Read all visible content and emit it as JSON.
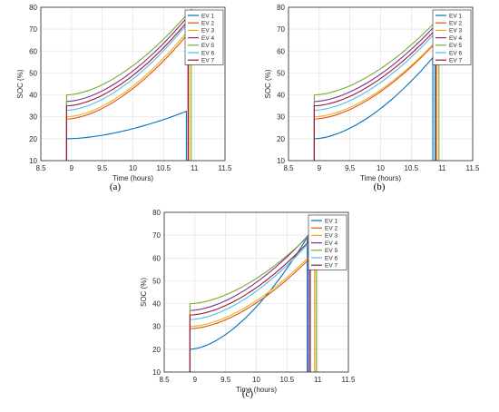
{
  "chart_data": [
    {
      "type": "line",
      "panel_label": "(a)",
      "xlabel": "Time (hours)",
      "ylabel": "SOC (%)",
      "xlim": [
        8.5,
        11.5
      ],
      "ylim": [
        10,
        80
      ],
      "xticks": [
        "8.5",
        "9",
        "9.5",
        "10",
        "10.5",
        "11",
        "11.5"
      ],
      "yticks": [
        "10",
        "20",
        "30",
        "40",
        "50",
        "60",
        "70",
        "80"
      ],
      "grid": true,
      "legend_position": "top-right",
      "series": [
        {
          "name": "EV 1",
          "color": "#0072BD",
          "start": 8.92,
          "end": 10.87,
          "soc_start": 20,
          "soc_end": 32.5
        },
        {
          "name": "EV 2",
          "color": "#D95319",
          "start": 8.92,
          "end": 10.9,
          "soc_start": 29,
          "soc_end": 68
        },
        {
          "name": "EV 3",
          "color": "#EDB120",
          "start": 8.92,
          "end": 10.92,
          "soc_start": 30,
          "soc_end": 70
        },
        {
          "name": "EV 4",
          "color": "#7E2F8E",
          "start": 8.92,
          "end": 10.9,
          "soc_start": 37,
          "soc_end": 76
        },
        {
          "name": "EV 5",
          "color": "#77AC30",
          "start": 8.92,
          "end": 10.95,
          "soc_start": 40,
          "soc_end": 79
        },
        {
          "name": "EV 6",
          "color": "#4DBEEE",
          "start": 8.92,
          "end": 10.9,
          "soc_start": 33,
          "soc_end": 73
        },
        {
          "name": "EV 7",
          "color": "#A2142F",
          "start": 8.92,
          "end": 10.9,
          "soc_start": 35,
          "soc_end": 74
        }
      ]
    },
    {
      "type": "line",
      "panel_label": "(b)",
      "xlabel": "Time (hours)",
      "ylabel": "SOC (%)",
      "xlim": [
        8.5,
        11.5
      ],
      "ylim": [
        10,
        80
      ],
      "xticks": [
        "8.5",
        "9",
        "9.5",
        "10",
        "10.5",
        "11",
        "11.5"
      ],
      "yticks": [
        "10",
        "20",
        "30",
        "40",
        "50",
        "60",
        "70",
        "80"
      ],
      "grid": true,
      "legend_position": "top-right",
      "series": [
        {
          "name": "EV 1",
          "color": "#0072BD",
          "start": 8.92,
          "end": 10.85,
          "soc_start": 20,
          "soc_end": 57
        },
        {
          "name": "EV 2",
          "color": "#D95319",
          "start": 8.92,
          "end": 10.9,
          "soc_start": 29,
          "soc_end": 64
        },
        {
          "name": "EV 3",
          "color": "#EDB120",
          "start": 8.92,
          "end": 10.92,
          "soc_start": 30,
          "soc_end": 65
        },
        {
          "name": "EV 4",
          "color": "#7E2F8E",
          "start": 8.92,
          "end": 10.9,
          "soc_start": 37,
          "soc_end": 72
        },
        {
          "name": "EV 5",
          "color": "#77AC30",
          "start": 8.92,
          "end": 10.95,
          "soc_start": 40,
          "soc_end": 75
        },
        {
          "name": "EV 6",
          "color": "#4DBEEE",
          "start": 8.92,
          "end": 10.88,
          "soc_start": 33,
          "soc_end": 68
        },
        {
          "name": "EV 7",
          "color": "#A2142F",
          "start": 8.92,
          "end": 10.9,
          "soc_start": 35,
          "soc_end": 70
        }
      ]
    },
    {
      "type": "line",
      "panel_label": "(c)",
      "xlabel": "Time (hours)",
      "ylabel": "SOC (%)",
      "xlim": [
        8.5,
        11.5
      ],
      "ylim": [
        10,
        80
      ],
      "xticks": [
        "8.5",
        "9",
        "9.5",
        "10",
        "10.5",
        "11",
        "11.5"
      ],
      "yticks": [
        "10",
        "20",
        "30",
        "40",
        "50",
        "60",
        "70",
        "80"
      ],
      "grid": true,
      "legend_position": "top-right",
      "series": [
        {
          "name": "EV 1",
          "color": "#0072BD",
          "start": 8.92,
          "end": 10.83,
          "soc_start": 20,
          "soc_end": 69
        },
        {
          "name": "EV 2",
          "color": "#D95319",
          "start": 8.92,
          "end": 10.95,
          "soc_start": 29,
          "soc_end": 62
        },
        {
          "name": "EV 3",
          "color": "#EDB120",
          "start": 8.92,
          "end": 10.95,
          "soc_start": 30,
          "soc_end": 63
        },
        {
          "name": "EV 4",
          "color": "#7E2F8E",
          "start": 8.92,
          "end": 10.85,
          "soc_start": 37,
          "soc_end": 70
        },
        {
          "name": "EV 5",
          "color": "#77AC30",
          "start": 8.92,
          "end": 10.98,
          "soc_start": 40,
          "soc_end": 73
        },
        {
          "name": "EV 6",
          "color": "#4DBEEE",
          "start": 8.92,
          "end": 10.87,
          "soc_start": 33,
          "soc_end": 67
        },
        {
          "name": "EV 7",
          "color": "#A2142F",
          "start": 8.92,
          "end": 10.88,
          "soc_start": 35,
          "soc_end": 68
        }
      ]
    }
  ]
}
